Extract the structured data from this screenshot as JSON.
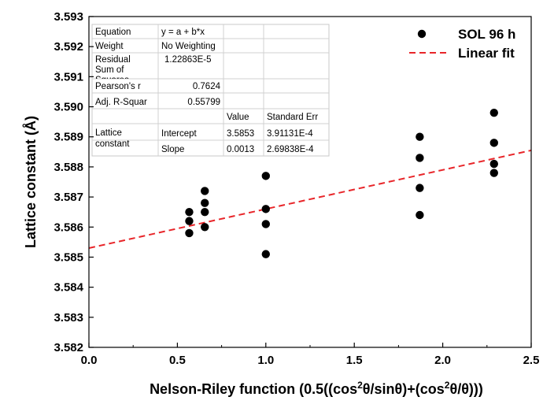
{
  "chart_data": {
    "type": "scatter",
    "title": "",
    "xlabel_main": "Nelson-Riley function (0.5((cos",
    "xlabel_parts": [
      "Nelson-Riley function (0.5((cos",
      "2",
      "θ/sinθ)+(cos",
      "2",
      "θ/θ)))"
    ],
    "ylabel": "Lattice constant (Å)",
    "xlim": [
      0.0,
      2.5
    ],
    "ylim": [
      3.582,
      3.593
    ],
    "x_ticks": [
      "0.0",
      "0.5",
      "1.0",
      "1.5",
      "2.0",
      "2.5"
    ],
    "y_ticks": [
      "3.582",
      "3.583",
      "3.584",
      "3.585",
      "3.586",
      "3.587",
      "3.588",
      "3.589",
      "3.590",
      "3.591",
      "3.592",
      "3.593"
    ],
    "grid": false,
    "legend_position": "top-right",
    "series": [
      {
        "name": "SOL 96 h",
        "kind": "scatter",
        "color": "#000000",
        "points": [
          [
            0.567,
            3.5865
          ],
          [
            0.567,
            3.5862
          ],
          [
            0.567,
            3.5858
          ],
          [
            0.655,
            3.5872
          ],
          [
            0.655,
            3.5868
          ],
          [
            0.655,
            3.5865
          ],
          [
            0.655,
            3.586
          ],
          [
            1.0,
            3.5877
          ],
          [
            1.0,
            3.5866
          ],
          [
            1.0,
            3.5861
          ],
          [
            1.0,
            3.5851
          ],
          [
            1.87,
            3.589
          ],
          [
            1.87,
            3.5883
          ],
          [
            1.87,
            3.5873
          ],
          [
            1.87,
            3.5864
          ],
          [
            2.29,
            3.5898
          ],
          [
            2.29,
            3.5888
          ],
          [
            2.29,
            3.5881
          ],
          [
            2.29,
            3.5878
          ]
        ]
      },
      {
        "name": "Linear fit",
        "kind": "line",
        "color": "#e8262a",
        "dash": "dashed",
        "intercept": 3.5853,
        "slope": 0.0013
      }
    ]
  },
  "fit_table": {
    "rows": [
      [
        "Equation",
        "y = a + b*x",
        "",
        ""
      ],
      [
        "Weight",
        "No Weighting",
        "",
        ""
      ],
      [
        "Residual Sum of Squares",
        "1.22863E-5",
        "",
        ""
      ],
      [
        "Pearson's r",
        "0.7624",
        "",
        ""
      ],
      [
        "Adj. R-Squar",
        "0.55799",
        "",
        ""
      ],
      [
        "",
        "",
        "Value",
        "Standard Err"
      ],
      [
        "Lattice constant",
        "Intercept",
        "3.5853",
        "3.91131E-4"
      ],
      [
        "",
        "Slope",
        "0.0013",
        "2.69838E-4"
      ]
    ]
  }
}
